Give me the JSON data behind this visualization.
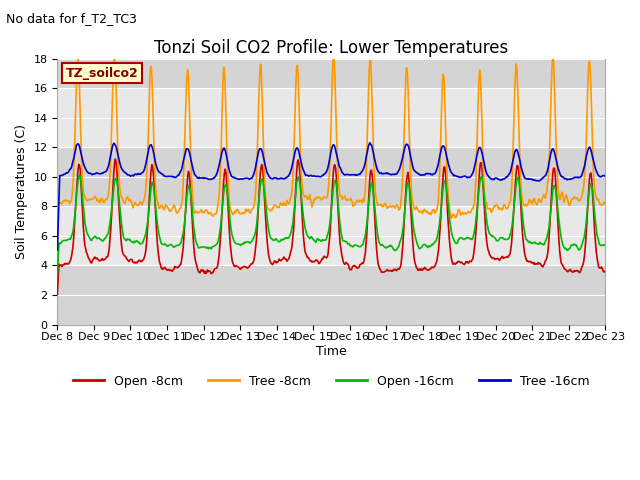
{
  "title": "Tonzi Soil CO2 Profile: Lower Temperatures",
  "subtitle": "No data for f_T2_TC3",
  "ylabel": "Soil Temperatures (C)",
  "xlabel": "Time",
  "ylim": [
    0,
    18
  ],
  "yticks": [
    0,
    2,
    4,
    6,
    8,
    10,
    12,
    14,
    16,
    18
  ],
  "legend_box_label": "TZ_soilco2",
  "legend_box_facecolor": "#FFFFCC",
  "legend_box_edgecolor": "#AA0000",
  "xtick_labels": [
    "Dec 8",
    "Dec 9",
    "Dec 10",
    "Dec 11",
    "Dec 12",
    "Dec 13",
    "Dec 14",
    "Dec 15",
    "Dec 16",
    "Dec 17",
    "Dec 18",
    "Dec 19",
    "Dec 20",
    "Dec 21",
    "Dec 22",
    "Dec 23"
  ],
  "num_days": 16,
  "points_per_day": 48,
  "band_colors": [
    "#d4d4d4",
    "#e8e8e8"
  ],
  "band_boundaries": [
    0,
    4,
    8,
    12,
    16,
    18
  ],
  "lines": {
    "open_8cm": {
      "color": "#cc0000",
      "label": "Open -8cm",
      "lw": 1.2
    },
    "tree_8cm": {
      "color": "#ff9900",
      "label": "Tree -8cm",
      "lw": 1.2
    },
    "open_16cm": {
      "color": "#00bb00",
      "label": "Open -16cm",
      "lw": 1.2
    },
    "tree_16cm": {
      "color": "#0000cc",
      "label": "Tree -16cm",
      "lw": 1.2
    }
  },
  "title_fontsize": 12,
  "subtitle_fontsize": 9,
  "axis_label_fontsize": 9,
  "tick_fontsize": 8,
  "legend_fontsize": 9
}
